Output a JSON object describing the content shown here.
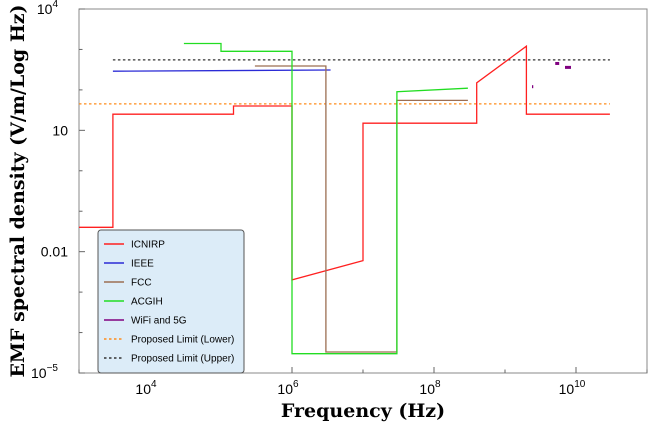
{
  "chart_data": {
    "type": "line",
    "xlabel": "Frequency (Hz)",
    "ylabel": "EMF spectral density (V/m/Log Hz)",
    "xscale": "log",
    "yscale": "log",
    "xlim": [
      1000,
      100000000000
    ],
    "ylim": [
      1e-05,
      10000
    ],
    "x_ticks": [
      {
        "value": 10000,
        "base": "10",
        "exp": "4"
      },
      {
        "value": 1000000,
        "base": "10",
        "exp": "6"
      },
      {
        "value": 100000000,
        "base": "10",
        "exp": "8"
      },
      {
        "value": 10000000000,
        "base": "10",
        "exp": "10"
      }
    ],
    "y_ticks": [
      {
        "value": 1e-05,
        "base": "10",
        "exp": "−5",
        "text": ""
      },
      {
        "value": 0.01,
        "base": "",
        "exp": "",
        "text": "0.01"
      },
      {
        "value": 10,
        "base": "",
        "exp": "",
        "text": "10"
      },
      {
        "value": 10000,
        "base": "10",
        "exp": "4",
        "text": ""
      }
    ],
    "legend_position": "lower-left",
    "grid": false,
    "series": [
      {
        "name": "ICNIRP",
        "color": "#ff2020",
        "dash": "solid",
        "points": [
          [
            1000,
            0.04
          ],
          [
            3000,
            0.04
          ],
          [
            3000,
            25
          ],
          [
            150000,
            25
          ],
          [
            150000,
            40
          ],
          [
            1000000,
            40
          ],
          [
            1000000,
            0.002
          ],
          [
            10000000,
            0.006
          ],
          [
            10000000,
            15
          ],
          [
            400000000,
            15
          ],
          [
            400000000,
            150
          ],
          [
            2000000000,
            1200
          ],
          [
            2000000000,
            25
          ],
          [
            30000000000,
            25
          ]
        ]
      },
      {
        "name": "IEEE",
        "color": "#2b2bd6",
        "dash": "solid",
        "points": [
          [
            3000,
            290
          ],
          [
            3500000,
            310
          ]
        ]
      },
      {
        "name": "FCC",
        "color": "#9c6e52",
        "dash": "solid",
        "points": [
          [
            300000,
            390
          ],
          [
            3000000,
            390
          ],
          [
            3000000,
            3.3e-05
          ],
          [
            30000000,
            3.3e-05
          ],
          [
            30000000,
            55
          ],
          [
            300000000,
            55
          ]
        ]
      },
      {
        "name": "ACGIH",
        "color": "#22dd22",
        "dash": "solid",
        "points": [
          [
            30000,
            1400
          ],
          [
            100000,
            1400
          ],
          [
            100000,
            900
          ],
          [
            1000000,
            900
          ],
          [
            1000000,
            3e-05
          ],
          [
            30000000,
            3e-05
          ],
          [
            30000000,
            90
          ],
          [
            300000000,
            110
          ]
        ]
      },
      {
        "name": "WiFi and 5G",
        "color": "#800080",
        "dash": "solid",
        "segments": [
          [
            [
              2400000000,
              120
            ],
            [
              2500000000,
              120
            ]
          ],
          [
            [
              5100000000,
              450
            ],
            [
              5800000000,
              450
            ]
          ],
          [
            [
              7000000000,
              360
            ],
            [
              8500000000,
              360
            ]
          ]
        ]
      },
      {
        "name": "Proposed Limit (Lower)",
        "color": "#ff8c1a",
        "dash": "dotted",
        "points": [
          [
            1000,
            45
          ],
          [
            30000000000,
            45
          ]
        ]
      },
      {
        "name": "Proposed Limit (Upper)",
        "color": "#333333",
        "dash": "dotted",
        "points": [
          [
            3000,
            550
          ],
          [
            30000000000,
            550
          ]
        ]
      }
    ]
  }
}
